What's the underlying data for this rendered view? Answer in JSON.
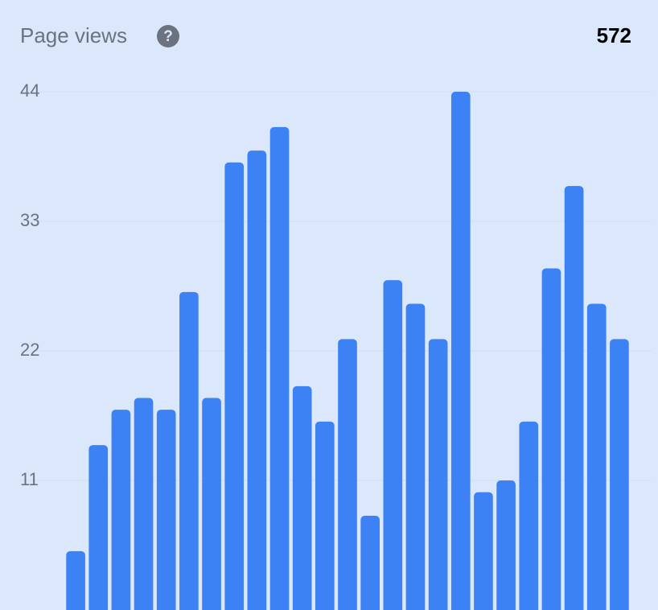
{
  "header": {
    "title": "Page views",
    "help_label": "?",
    "total": "572"
  },
  "chart_data": {
    "type": "bar",
    "categories": [
      null,
      null,
      null,
      null,
      null,
      null,
      null,
      null,
      null,
      null,
      null,
      null,
      null,
      null,
      null,
      null,
      null,
      null,
      null,
      null,
      null,
      null,
      null,
      null,
      null
    ],
    "values": [
      5,
      14,
      17,
      18,
      17,
      27,
      18,
      38,
      39,
      41,
      19,
      16,
      23,
      8,
      28,
      26,
      23,
      44,
      10,
      11,
      16,
      29,
      36,
      26,
      23
    ],
    "color": "#3d82f5",
    "ylim": [
      0,
      44
    ],
    "yticks": [
      11,
      22,
      33,
      44
    ],
    "grid": true
  }
}
